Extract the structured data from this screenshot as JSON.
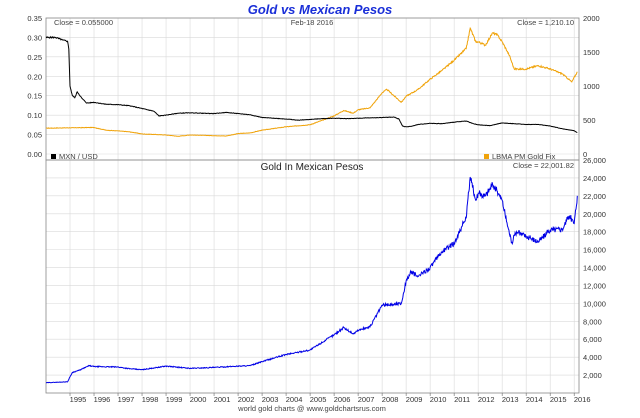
{
  "title": "Gold vs Mexican Pesos",
  "footer": "world gold charts @ www.goldchartsrus.com",
  "colors": {
    "mxn": "#000000",
    "gold_usd": "#f0a30a",
    "gold_mxn": "#0000e6",
    "title": "#1a2fd8",
    "grid": "#d9d9d9",
    "frame": "#888888"
  },
  "x_ticks": [
    "1995",
    "1996",
    "1997",
    "1998",
    "1999",
    "2000",
    "2001",
    "2002",
    "2003",
    "2004",
    "2005",
    "2006",
    "2007",
    "2008",
    "2009",
    "2010",
    "2011",
    "2012",
    "2013",
    "2014",
    "2015",
    "2016"
  ],
  "chart_data": [
    {
      "type": "line",
      "title": "Gold vs Mexican Pesos",
      "header": {
        "left": "Close = 0.055000",
        "center": "Feb-18 2016",
        "right": "Close = 1,210.10"
      },
      "xlim": [
        1994.0,
        2016.2
      ],
      "left_axis": {
        "ylim": [
          0,
          0.35
        ],
        "ticks": [
          "0.00",
          "0.05",
          "0.10",
          "0.15",
          "0.20",
          "0.25",
          "0.30",
          "0.35"
        ]
      },
      "right_axis": {
        "ylim": [
          0,
          2000
        ],
        "ticks": [
          "0",
          "500",
          "1000",
          "1500",
          "2000"
        ]
      },
      "legend": {
        "left": "MXN / USD",
        "right": "LBMA PM Gold Fix"
      },
      "series": [
        {
          "name": "MXN / USD",
          "axis": "left",
          "x": [
            1994.0,
            1994.4,
            1994.7,
            1994.9,
            1994.95,
            1995.0,
            1995.1,
            1995.2,
            1995.3,
            1995.5,
            1995.7,
            1996.0,
            1996.5,
            1997.0,
            1997.5,
            1998.0,
            1998.5,
            1998.7,
            1999.0,
            1999.5,
            2000.0,
            2000.5,
            2001.0,
            2001.5,
            2002.0,
            2002.5,
            2003.0,
            2003.5,
            2004.0,
            2004.5,
            2005.0,
            2005.5,
            2006.0,
            2006.5,
            2007.0,
            2007.5,
            2008.0,
            2008.5,
            2008.7,
            2008.85,
            2009.0,
            2009.2,
            2009.5,
            2010.0,
            2010.5,
            2011.0,
            2011.5,
            2011.8,
            2012.0,
            2012.5,
            2013.0,
            2013.5,
            2014.0,
            2014.5,
            2015.0,
            2015.5,
            2016.0,
            2016.13
          ],
          "values": [
            0.3,
            0.3,
            0.293,
            0.29,
            0.27,
            0.175,
            0.15,
            0.145,
            0.16,
            0.143,
            0.131,
            0.133,
            0.128,
            0.127,
            0.124,
            0.117,
            0.11,
            0.098,
            0.1,
            0.105,
            0.106,
            0.105,
            0.104,
            0.107,
            0.104,
            0.101,
            0.094,
            0.092,
            0.09,
            0.087,
            0.089,
            0.091,
            0.092,
            0.091,
            0.092,
            0.093,
            0.094,
            0.095,
            0.09,
            0.072,
            0.07,
            0.071,
            0.076,
            0.079,
            0.078,
            0.082,
            0.085,
            0.078,
            0.075,
            0.073,
            0.08,
            0.078,
            0.076,
            0.076,
            0.072,
            0.065,
            0.06,
            0.055
          ]
        },
        {
          "name": "LBMA PM Gold Fix",
          "axis": "right",
          "x": [
            1994.0,
            1995.0,
            1996.0,
            1996.5,
            1997.0,
            1997.5,
            1998.0,
            1999.0,
            1999.5,
            2000.0,
            2001.0,
            2001.5,
            2002.0,
            2002.5,
            2003.0,
            2004.0,
            2005.0,
            2006.0,
            2006.4,
            2006.8,
            2007.0,
            2007.5,
            2008.0,
            2008.2,
            2008.8,
            2009.0,
            2009.5,
            2010.0,
            2010.5,
            2011.0,
            2011.5,
            2011.67,
            2011.9,
            2012.0,
            2012.3,
            2012.6,
            2012.8,
            2013.0,
            2013.3,
            2013.5,
            2014.0,
            2014.5,
            2015.0,
            2015.5,
            2015.9,
            2016.13
          ],
          "values": [
            380,
            385,
            390,
            350,
            340,
            325,
            295,
            280,
            260,
            280,
            270,
            265,
            300,
            310,
            350,
            400,
            430,
            560,
            640,
            600,
            650,
            680,
            900,
            950,
            760,
            850,
            950,
            1100,
            1230,
            1380,
            1550,
            1850,
            1650,
            1650,
            1600,
            1780,
            1750,
            1650,
            1450,
            1250,
            1250,
            1300,
            1250,
            1180,
            1060,
            1210
          ]
        }
      ]
    },
    {
      "type": "line",
      "title": "Gold In Mexican Pesos",
      "header": {
        "right": "Close = 22,001.82"
      },
      "xlim": [
        1994.0,
        2016.2
      ],
      "ylim": [
        0,
        26000
      ],
      "y_ticks": [
        "2,000",
        "4,000",
        "6,000",
        "8,000",
        "10,000",
        "12,000",
        "14,000",
        "16,000",
        "18,000",
        "20,000",
        "22,000",
        "24,000",
        "26,000"
      ],
      "series": [
        {
          "name": "Gold In Mexican Pesos",
          "x": [
            1994.0,
            1994.9,
            1995.0,
            1995.1,
            1995.4,
            1995.8,
            1996.0,
            1997.0,
            1997.5,
            1998.0,
            1998.5,
            1999.0,
            2000.0,
            2001.0,
            2002.0,
            2002.5,
            2003.0,
            2004.0,
            2005.0,
            2006.0,
            2006.4,
            2006.8,
            2007.0,
            2007.5,
            2008.0,
            2008.5,
            2008.8,
            2009.0,
            2009.2,
            2009.5,
            2010.0,
            2010.5,
            2011.0,
            2011.3,
            2011.5,
            2011.67,
            2011.9,
            2012.0,
            2012.3,
            2012.6,
            2012.8,
            2013.0,
            2013.2,
            2013.4,
            2013.6,
            2014.0,
            2014.5,
            2015.0,
            2015.5,
            2015.8,
            2016.0,
            2016.13
          ],
          "values": [
            1150,
            1250,
            1800,
            2300,
            2550,
            3050,
            2950,
            2900,
            2700,
            2600,
            2800,
            3000,
            2750,
            2850,
            3000,
            3050,
            3500,
            4300,
            4800,
            6500,
            7300,
            6600,
            7000,
            7400,
            9800,
            9900,
            10000,
            12500,
            13500,
            13000,
            14000,
            15800,
            16700,
            18500,
            19500,
            24100,
            21500,
            22300,
            22000,
            23300,
            22500,
            21500,
            19000,
            16800,
            18000,
            17500,
            16900,
            18200,
            18300,
            19800,
            18900,
            22002
          ]
        }
      ]
    }
  ]
}
